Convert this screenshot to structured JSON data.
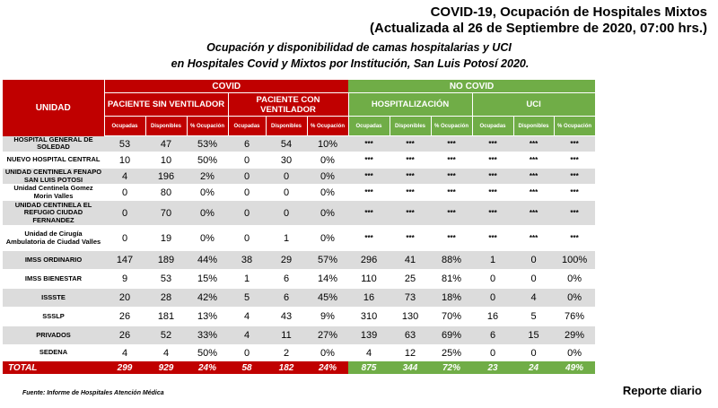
{
  "header": {
    "line1": "COVID-19, Ocupación de Hospitales Mixtos",
    "line2": "(Actualizada al 26 de Septiembre de 2020, 07:00 hrs.)"
  },
  "subtitle": {
    "line1": "Ocupación y disponibilidad de camas hospitalarias y UCI",
    "line2": "en Hospitales Covid y Mixtos por Institución, San Luis Potosí 2020."
  },
  "table": {
    "unidad_header": "UNIDAD",
    "covid_label": "COVID",
    "nocovid_label": "NO COVID",
    "group_sin": "PACIENTE SIN VENTILADOR",
    "group_con": "PACIENTE CON VENTILADOR",
    "group_hosp": "HOSPITALIZACIÓN",
    "group_uci": "UCI",
    "col_ocupadas": "Ocupadas",
    "col_disponibles": "Disponibles",
    "col_pct": "% Ocupación",
    "rows": [
      {
        "name": "HOSPITAL GENERAL DE SOLEDAD",
        "v": [
          "53",
          "47",
          "53%",
          "6",
          "54",
          "10%",
          "***",
          "***",
          "***",
          "***",
          "***",
          "***"
        ]
      },
      {
        "name": "NUEVO HOSPITAL CENTRAL",
        "v": [
          "10",
          "10",
          "50%",
          "0",
          "30",
          "0%",
          "***",
          "***",
          "***",
          "***",
          "***",
          "***"
        ]
      },
      {
        "name": "UNIDAD CENTINELA FENAPO SAN LUIS POTOSI",
        "v": [
          "4",
          "196",
          "2%",
          "0",
          "0",
          "0%",
          "***",
          "***",
          "***",
          "***",
          "***",
          "***"
        ]
      },
      {
        "name": "Unidad Centinela Gomez Morin Valles",
        "v": [
          "0",
          "80",
          "0%",
          "0",
          "0",
          "0%",
          "***",
          "***",
          "***",
          "***",
          "***",
          "***"
        ]
      },
      {
        "name": "UNIDAD CENTINELA EL REFUGIO CIUDAD FERNANDEZ",
        "v": [
          "0",
          "70",
          "0%",
          "0",
          "0",
          "0%",
          "***",
          "***",
          "***",
          "***",
          "***",
          "***"
        ]
      },
      {
        "name": "Unidad de Cirugía Ambulatoria de Ciudad Valles",
        "v": [
          "0",
          "19",
          "0%",
          "0",
          "1",
          "0%",
          "***",
          "***",
          "***",
          "***",
          "***",
          "***"
        ]
      },
      {
        "name": "IMSS ORDINARIO",
        "v": [
          "147",
          "189",
          "44%",
          "38",
          "29",
          "57%",
          "296",
          "41",
          "88%",
          "1",
          "0",
          "100%"
        ]
      },
      {
        "name": "IMSS BIENESTAR",
        "v": [
          "9",
          "53",
          "15%",
          "1",
          "6",
          "14%",
          "110",
          "25",
          "81%",
          "0",
          "0",
          "0%"
        ]
      },
      {
        "name": "ISSSTE",
        "v": [
          "20",
          "28",
          "42%",
          "5",
          "6",
          "45%",
          "16",
          "73",
          "18%",
          "0",
          "4",
          "0%"
        ]
      },
      {
        "name": "SSSLP",
        "v": [
          "26",
          "181",
          "13%",
          "4",
          "43",
          "9%",
          "310",
          "130",
          "70%",
          "16",
          "5",
          "76%"
        ]
      },
      {
        "name": "PRIVADOS",
        "v": [
          "26",
          "52",
          "33%",
          "4",
          "11",
          "27%",
          "139",
          "63",
          "69%",
          "6",
          "15",
          "29%"
        ]
      },
      {
        "name": "SEDENA",
        "v": [
          "4",
          "4",
          "50%",
          "0",
          "2",
          "0%",
          "4",
          "12",
          "25%",
          "0",
          "0",
          "0%"
        ]
      }
    ],
    "total": {
      "name": "TOTAL",
      "v": [
        "299",
        "929",
        "24%",
        "58",
        "182",
        "24%",
        "875",
        "344",
        "72%",
        "23",
        "24",
        "49%"
      ]
    }
  },
  "footer": {
    "fuente": "Fuente: Informe de Hospitales Atención Médica",
    "reporte": "Reporte diario"
  },
  "colors": {
    "covid": "#c00000",
    "nocovid": "#70ad47",
    "row_shade": "#dcdcdc"
  }
}
